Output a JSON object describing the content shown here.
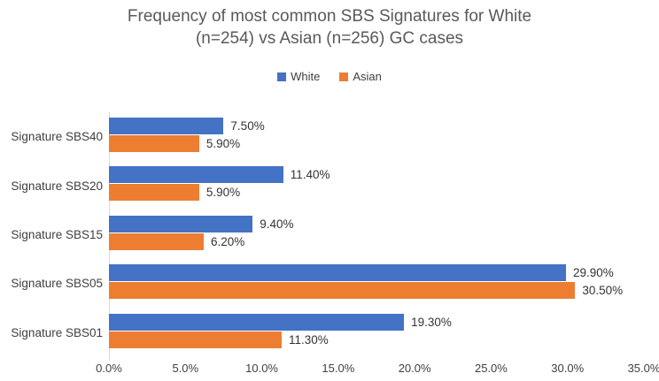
{
  "header": {
    "title_line1": "Frequency of most common SBS Signatures for White",
    "title_line2": "(n=254) vs Asian (n=256) GC cases"
  },
  "chart_data": {
    "type": "bar",
    "orientation": "horizontal",
    "title": "Frequency of most common SBS Signatures for White (n=254) vs Asian (n=256) GC cases",
    "categories": [
      "Signature SBS40",
      "Signature SBS20",
      "Signature SBS15",
      "Signature SBS05",
      "Signature SBS01"
    ],
    "series": [
      {
        "name": "White",
        "color": "#4472C4",
        "values": [
          7.5,
          11.4,
          9.4,
          29.9,
          19.3
        ],
        "labels": [
          "7.50%",
          "11.40%",
          "9.40%",
          "29.90%",
          "19.30%"
        ]
      },
      {
        "name": "Asian",
        "color": "#ED7D31",
        "values": [
          5.9,
          5.9,
          6.2,
          30.5,
          11.3
        ],
        "labels": [
          "5.90%",
          "5.90%",
          "6.20%",
          "30.50%",
          "11.30%"
        ]
      }
    ],
    "xlim": [
      0,
      35
    ],
    "x_ticks": [
      "0.0%",
      "5.0%",
      "10.0%",
      "15.0%",
      "20.0%",
      "25.0%",
      "30.0%",
      "35.0%"
    ],
    "legend_position": "top",
    "grid": false
  },
  "colors": {
    "title_text": "#595959",
    "axis_text": "#404040",
    "data_label_text": "#333333",
    "axis_line": "#D9D9D9",
    "background": "#FFFFFF"
  }
}
